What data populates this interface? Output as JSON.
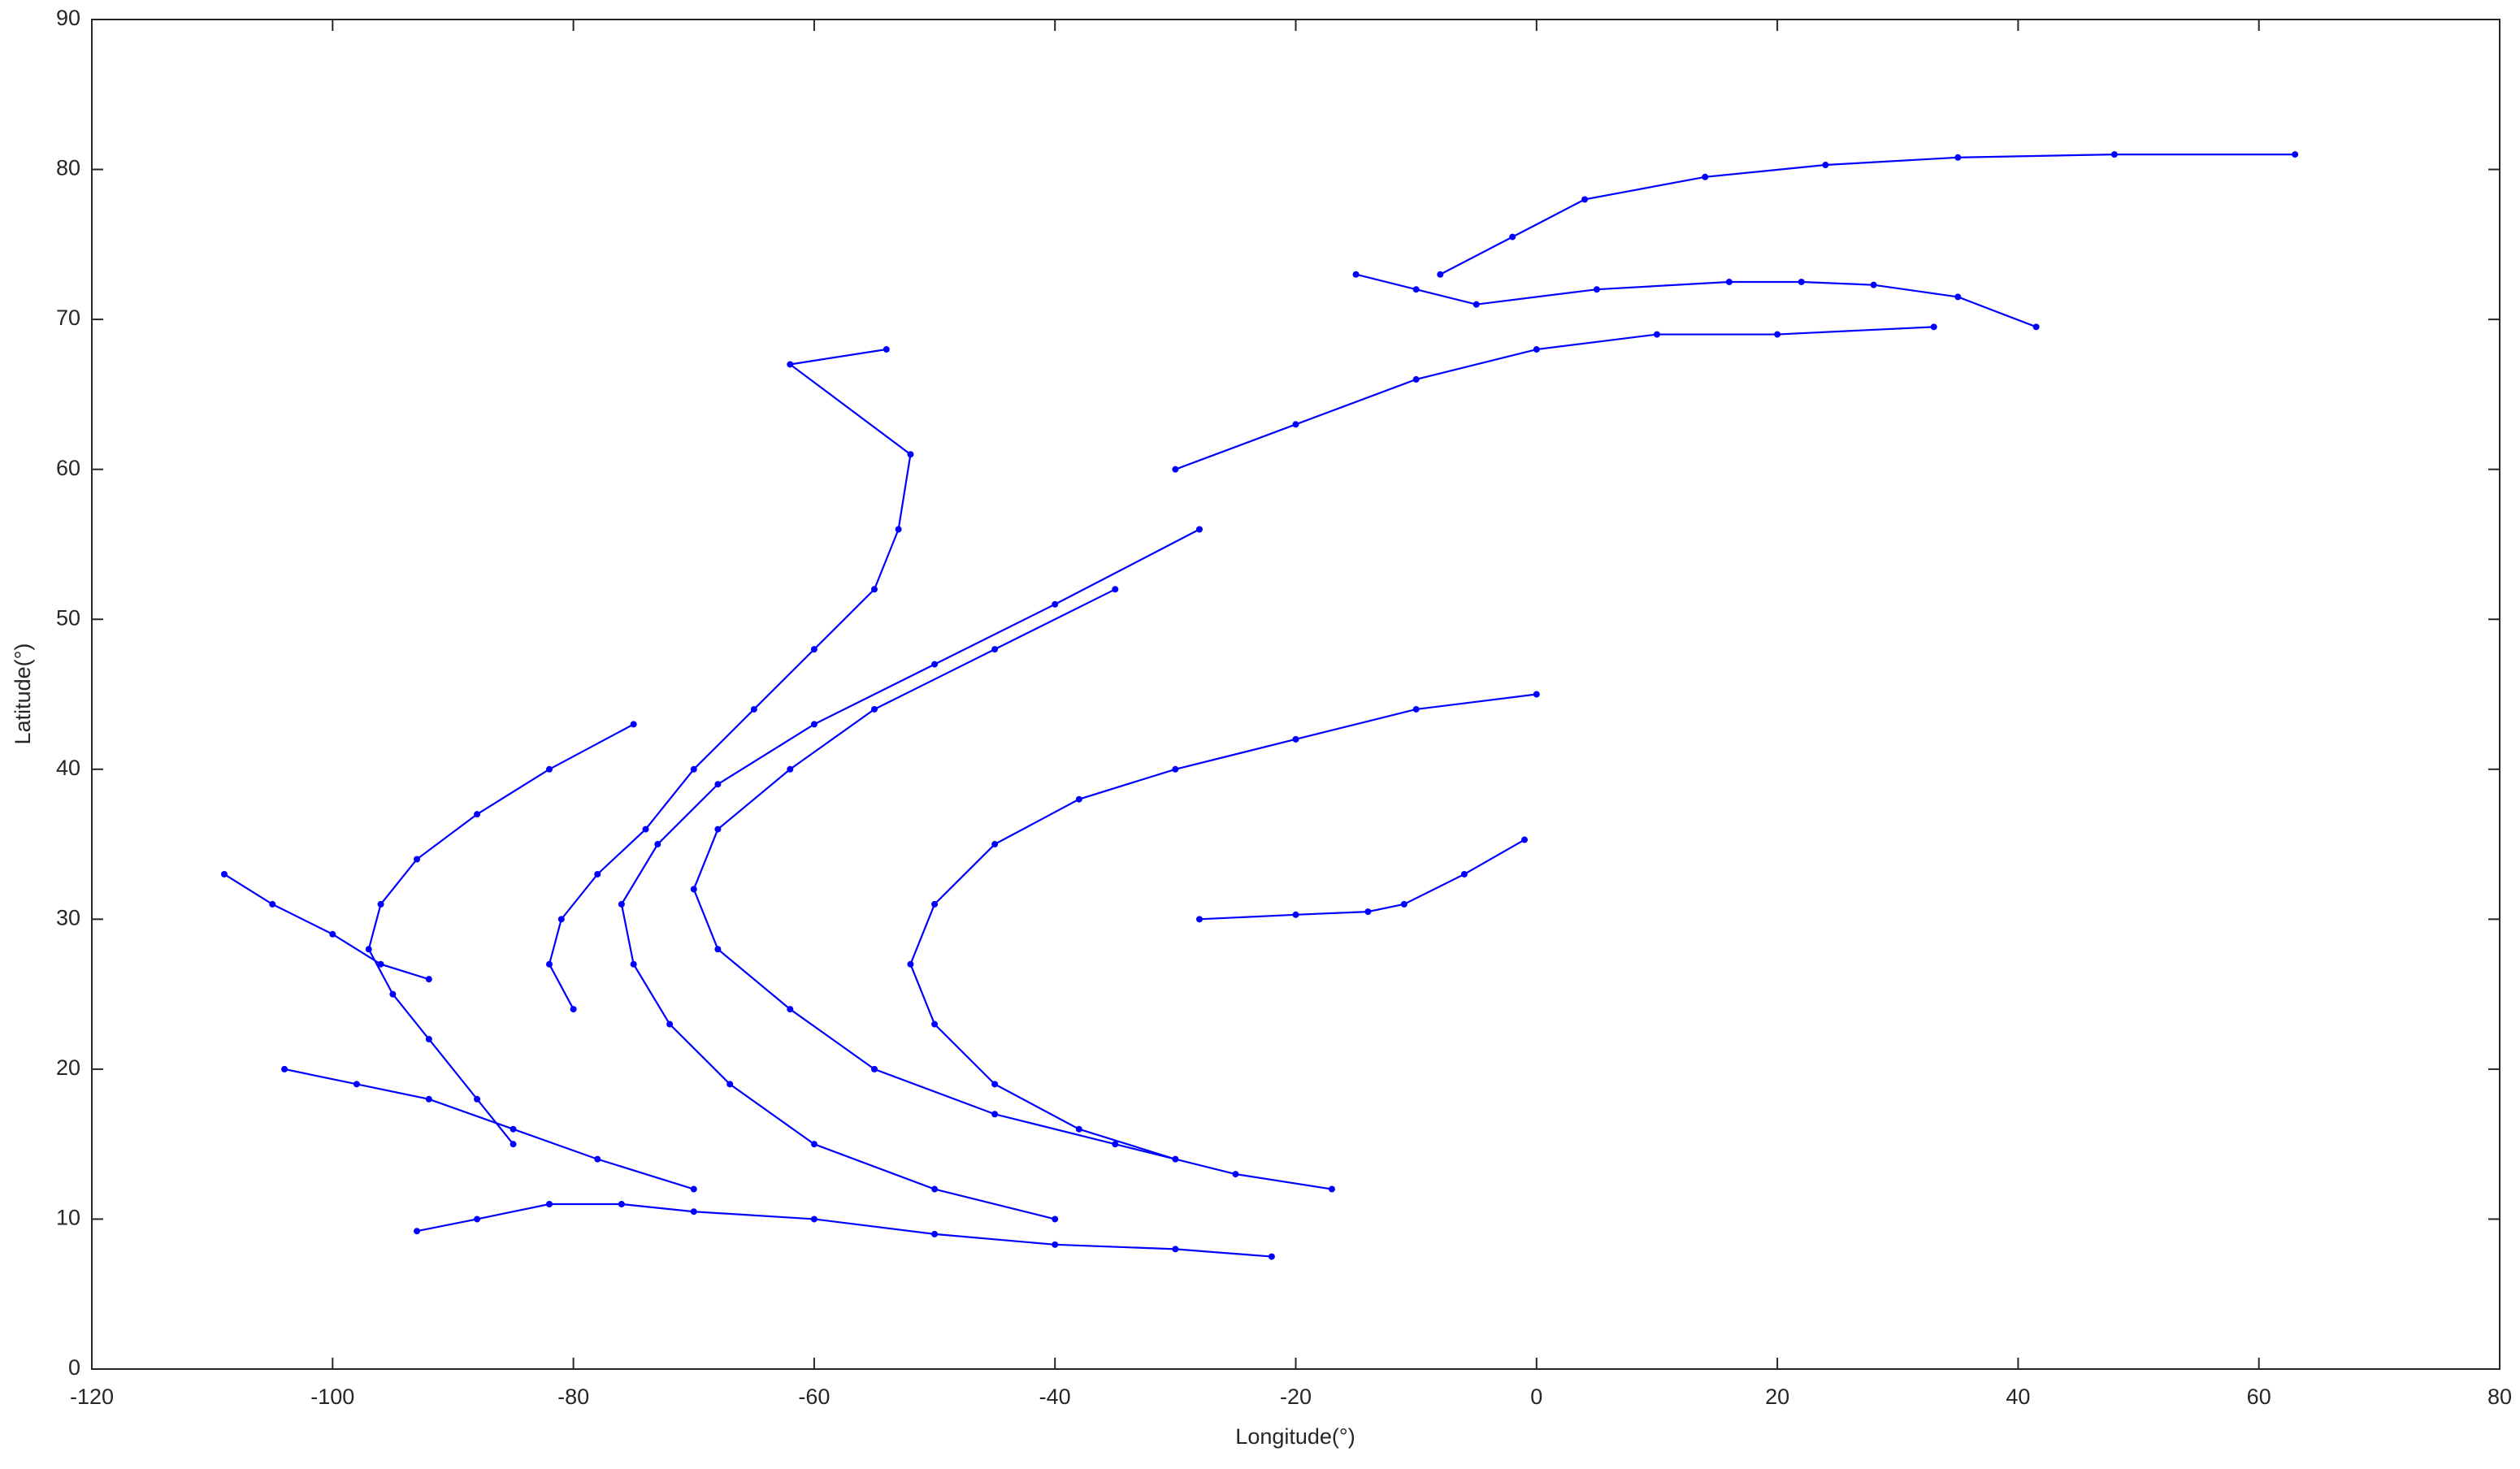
{
  "chart_data": {
    "type": "line",
    "x_label": "Longitude(°)",
    "y_label": "Latitude(°)",
    "xlim": [
      -120,
      80
    ],
    "xticks": [
      -120,
      -100,
      -80,
      -60,
      -40,
      -20,
      0,
      20,
      40,
      60,
      80
    ],
    "ylim": [
      0,
      90
    ],
    "yticks": [
      0,
      10,
      20,
      30,
      40,
      50,
      60,
      70,
      80,
      90
    ],
    "markers": true,
    "series": [
      {
        "color": "#0000ff",
        "x": [
          -8,
          -2,
          4,
          14,
          24,
          35,
          48,
          63
        ],
        "values": [
          73,
          75.5,
          78,
          79.5,
          80.3,
          80.8,
          81,
          81
        ]
      },
      {
        "color": "#0000ff",
        "x": [
          -15,
          -10,
          -5,
          5,
          16,
          22,
          28,
          35,
          41.5
        ],
        "values": [
          73,
          72,
          71,
          72,
          72.5,
          72.5,
          72.3,
          71.5,
          69.5
        ]
      },
      {
        "color": "#0000ff",
        "x": [
          -30,
          -20,
          -10,
          0,
          10,
          20,
          33
        ],
        "values": [
          60,
          63,
          66,
          68,
          69,
          69,
          69.5
        ]
      },
      {
        "color": "#0000ff",
        "x": [
          -17,
          -25,
          -35,
          -45,
          -55,
          -62,
          -68,
          -70,
          -68,
          -62,
          -55,
          -45,
          -35
        ],
        "values": [
          12,
          13,
          15,
          17,
          20,
          24,
          28,
          32,
          36,
          40,
          44,
          48,
          52
        ]
      },
      {
        "color": "#0000ff",
        "x": [
          -85,
          -88,
          -92,
          -95,
          -97,
          -96,
          -93,
          -88,
          -82,
          -75
        ],
        "values": [
          15,
          18,
          22,
          25,
          28,
          31,
          34,
          37,
          40,
          43
        ]
      },
      {
        "color": "#0000ff",
        "x": [
          -70,
          -78,
          -85,
          -92,
          -98,
          -104
        ],
        "values": [
          12,
          14,
          16,
          18,
          19,
          20
        ]
      },
      {
        "color": "#0000ff",
        "x": [
          -40,
          -50,
          -60,
          -67,
          -72,
          -75,
          -76,
          -73,
          -68,
          -60,
          -50,
          -40,
          -28
        ],
        "values": [
          10,
          12,
          15,
          19,
          23,
          27,
          31,
          35,
          39,
          43,
          47,
          51,
          56
        ]
      },
      {
        "color": "#0000ff",
        "x": [
          -30,
          -38,
          -45,
          -50,
          -52,
          -50,
          -45,
          -38,
          -30,
          -20,
          -10,
          0
        ],
        "values": [
          14,
          16,
          19,
          23,
          27,
          31,
          35,
          38,
          40,
          42,
          44,
          45
        ]
      },
      {
        "color": "#0000ff",
        "x": [
          -1,
          -6,
          -11,
          -14,
          -20,
          -28
        ],
        "values": [
          35.3,
          33,
          31,
          30.5,
          30.3,
          30
        ]
      },
      {
        "color": "#0000ff",
        "x": [
          -80,
          -82,
          -81,
          -78,
          -74,
          -70,
          -65,
          -60,
          -55,
          -53,
          -52,
          -62,
          -54
        ],
        "values": [
          24,
          27,
          30,
          33,
          36,
          40,
          44,
          48,
          52,
          56,
          61,
          67,
          68
        ]
      },
      {
        "color": "#0000ff",
        "x": [
          -109,
          -105,
          -100,
          -96,
          -92
        ],
        "values": [
          33,
          31,
          29,
          27,
          26
        ]
      },
      {
        "color": "#0000ff",
        "x": [
          -93,
          -88,
          -82,
          -76,
          -70,
          -60,
          -50,
          -40,
          -30,
          -22
        ],
        "values": [
          9.2,
          10,
          11,
          11,
          10.5,
          10,
          9,
          8.3,
          8,
          7.5
        ]
      }
    ]
  }
}
